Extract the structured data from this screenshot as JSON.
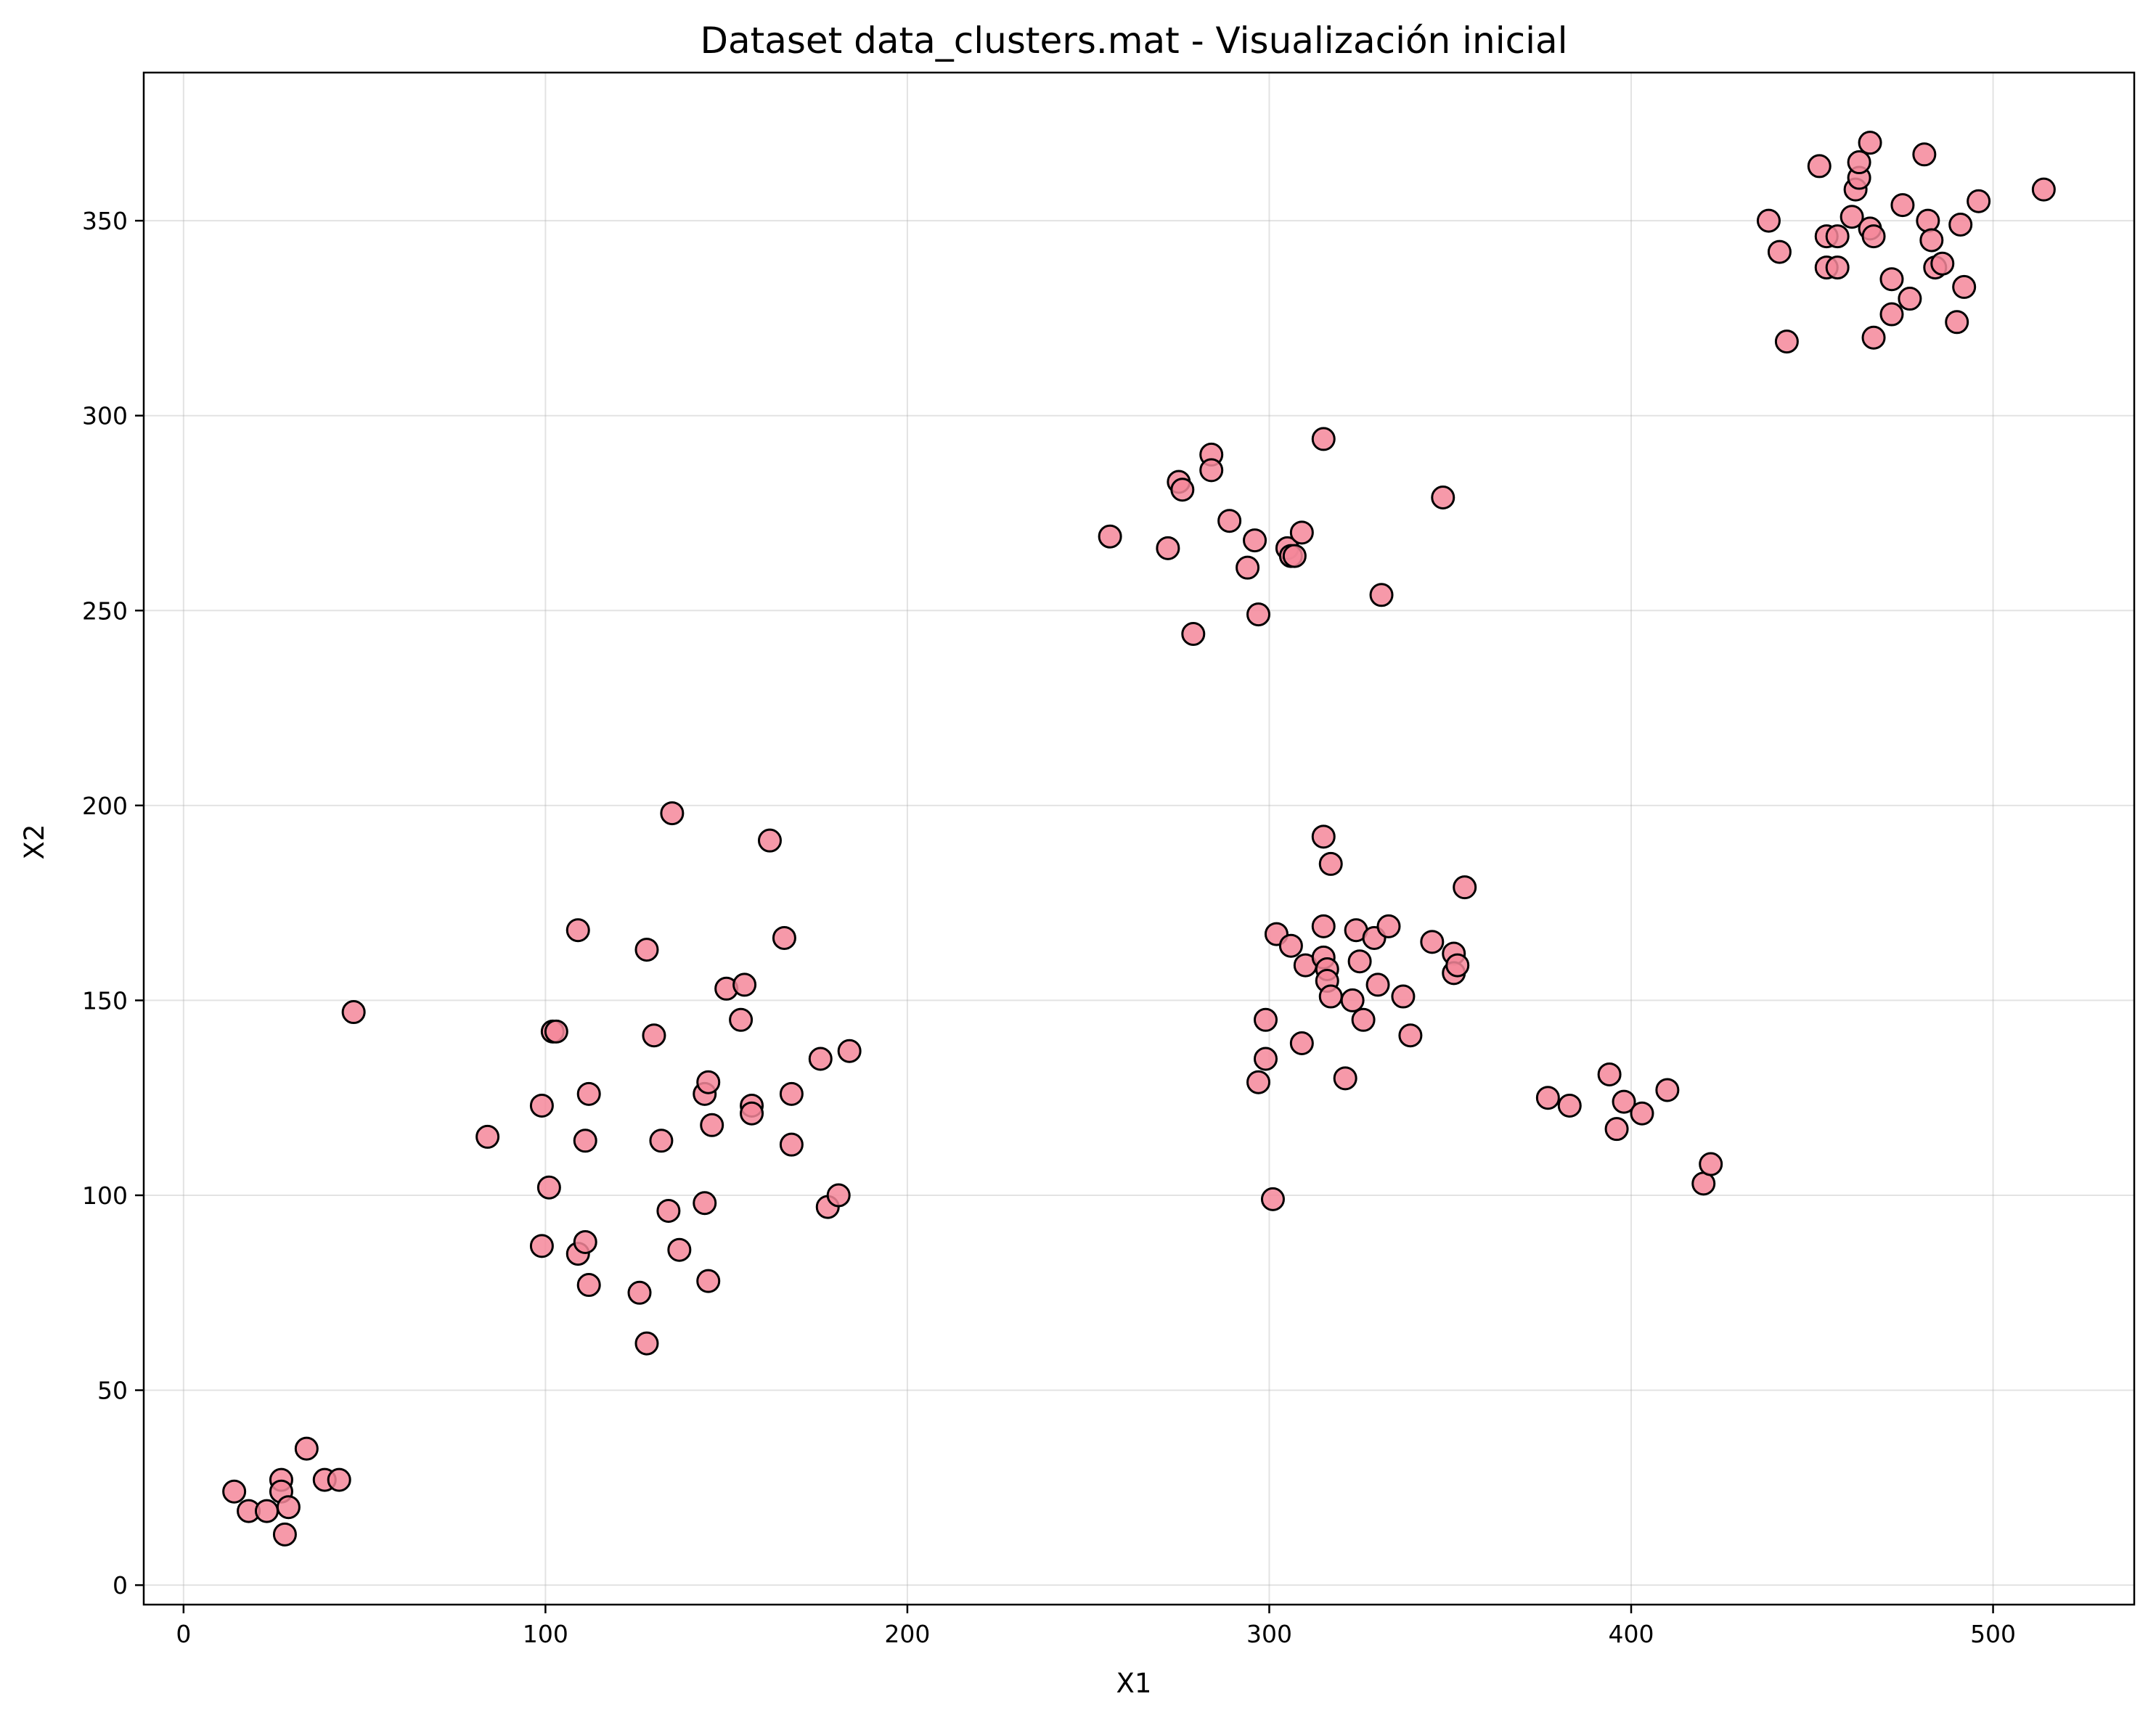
{
  "chart_data": {
    "type": "scatter",
    "title": "Dataset data_clusters.mat - Visualización inicial",
    "xlabel": "X1",
    "ylabel": "X2",
    "xlim": [
      -11,
      539
    ],
    "ylim": [
      -5,
      388
    ],
    "xticks": [
      0,
      100,
      200,
      300,
      400,
      500
    ],
    "yticks": [
      0,
      50,
      100,
      150,
      200,
      250,
      300,
      350
    ],
    "grid": true,
    "marker_color": "#f4879a",
    "marker_edge": "#000000",
    "points": [
      [
        14,
        24
      ],
      [
        18,
        19
      ],
      [
        23,
        19
      ],
      [
        27,
        27
      ],
      [
        27,
        24
      ],
      [
        28,
        13
      ],
      [
        29,
        20
      ],
      [
        34,
        35
      ],
      [
        39,
        27
      ],
      [
        43,
        27
      ],
      [
        47,
        147
      ],
      [
        84,
        115
      ],
      [
        99,
        123
      ],
      [
        99,
        87
      ],
      [
        101,
        102
      ],
      [
        102,
        142
      ],
      [
        103,
        142
      ],
      [
        109,
        168
      ],
      [
        109,
        85
      ],
      [
        111,
        88
      ],
      [
        111,
        114
      ],
      [
        112,
        126
      ],
      [
        112,
        77
      ],
      [
        126,
        75
      ],
      [
        128,
        163
      ],
      [
        128,
        62
      ],
      [
        130,
        141
      ],
      [
        132,
        114
      ],
      [
        134,
        96
      ],
      [
        135,
        198
      ],
      [
        137,
        86
      ],
      [
        144,
        126
      ],
      [
        144,
        98
      ],
      [
        145,
        129
      ],
      [
        145,
        78
      ],
      [
        146,
        118
      ],
      [
        150,
        153
      ],
      [
        154,
        145
      ],
      [
        155,
        154
      ],
      [
        157,
        123
      ],
      [
        157,
        121
      ],
      [
        162,
        191
      ],
      [
        166,
        166
      ],
      [
        168,
        126
      ],
      [
        168,
        113
      ],
      [
        176,
        135
      ],
      [
        178,
        97
      ],
      [
        181,
        100
      ],
      [
        184,
        137
      ],
      [
        256,
        269
      ],
      [
        272,
        266
      ],
      [
        275,
        283
      ],
      [
        276,
        281
      ],
      [
        279,
        244
      ],
      [
        284,
        290
      ],
      [
        284,
        286
      ],
      [
        289,
        273
      ],
      [
        294,
        261
      ],
      [
        296,
        268
      ],
      [
        297,
        249
      ],
      [
        305,
        266
      ],
      [
        306,
        264
      ],
      [
        307,
        264
      ],
      [
        309,
        270
      ],
      [
        315,
        294
      ],
      [
        331,
        254
      ],
      [
        348,
        279
      ],
      [
        297,
        129
      ],
      [
        299,
        145
      ],
      [
        299,
        135
      ],
      [
        301,
        99
      ],
      [
        302,
        167
      ],
      [
        306,
        164
      ],
      [
        309,
        139
      ],
      [
        310,
        159
      ],
      [
        315,
        169
      ],
      [
        315,
        161
      ],
      [
        315,
        192
      ],
      [
        316,
        158
      ],
      [
        316,
        155
      ],
      [
        317,
        151
      ],
      [
        317,
        185
      ],
      [
        321,
        130
      ],
      [
        323,
        150
      ],
      [
        324,
        168
      ],
      [
        325,
        160
      ],
      [
        326,
        145
      ],
      [
        329,
        166
      ],
      [
        330,
        154
      ],
      [
        333,
        169
      ],
      [
        337,
        151
      ],
      [
        339,
        141
      ],
      [
        345,
        165
      ],
      [
        351,
        162
      ],
      [
        351,
        157
      ],
      [
        352,
        159
      ],
      [
        354,
        179
      ],
      [
        377,
        125
      ],
      [
        383,
        123
      ],
      [
        394,
        131
      ],
      [
        396,
        117
      ],
      [
        398,
        124
      ],
      [
        403,
        121
      ],
      [
        410,
        127
      ],
      [
        420,
        103
      ],
      [
        422,
        108
      ],
      [
        438,
        350
      ],
      [
        441,
        342
      ],
      [
        443,
        319
      ],
      [
        452,
        364
      ],
      [
        454,
        346
      ],
      [
        454,
        338
      ],
      [
        457,
        346
      ],
      [
        457,
        338
      ],
      [
        461,
        351
      ],
      [
        462,
        358
      ],
      [
        463,
        361
      ],
      [
        463,
        365
      ],
      [
        466,
        370
      ],
      [
        466,
        348
      ],
      [
        467,
        346
      ],
      [
        467,
        320
      ],
      [
        472,
        335
      ],
      [
        472,
        326
      ],
      [
        475,
        354
      ],
      [
        477,
        330
      ],
      [
        481,
        367
      ],
      [
        482,
        350
      ],
      [
        483,
        345
      ],
      [
        484,
        338
      ],
      [
        486,
        339
      ],
      [
        490,
        324
      ],
      [
        491,
        349
      ],
      [
        492,
        333
      ],
      [
        496,
        355
      ],
      [
        514,
        358
      ]
    ]
  }
}
